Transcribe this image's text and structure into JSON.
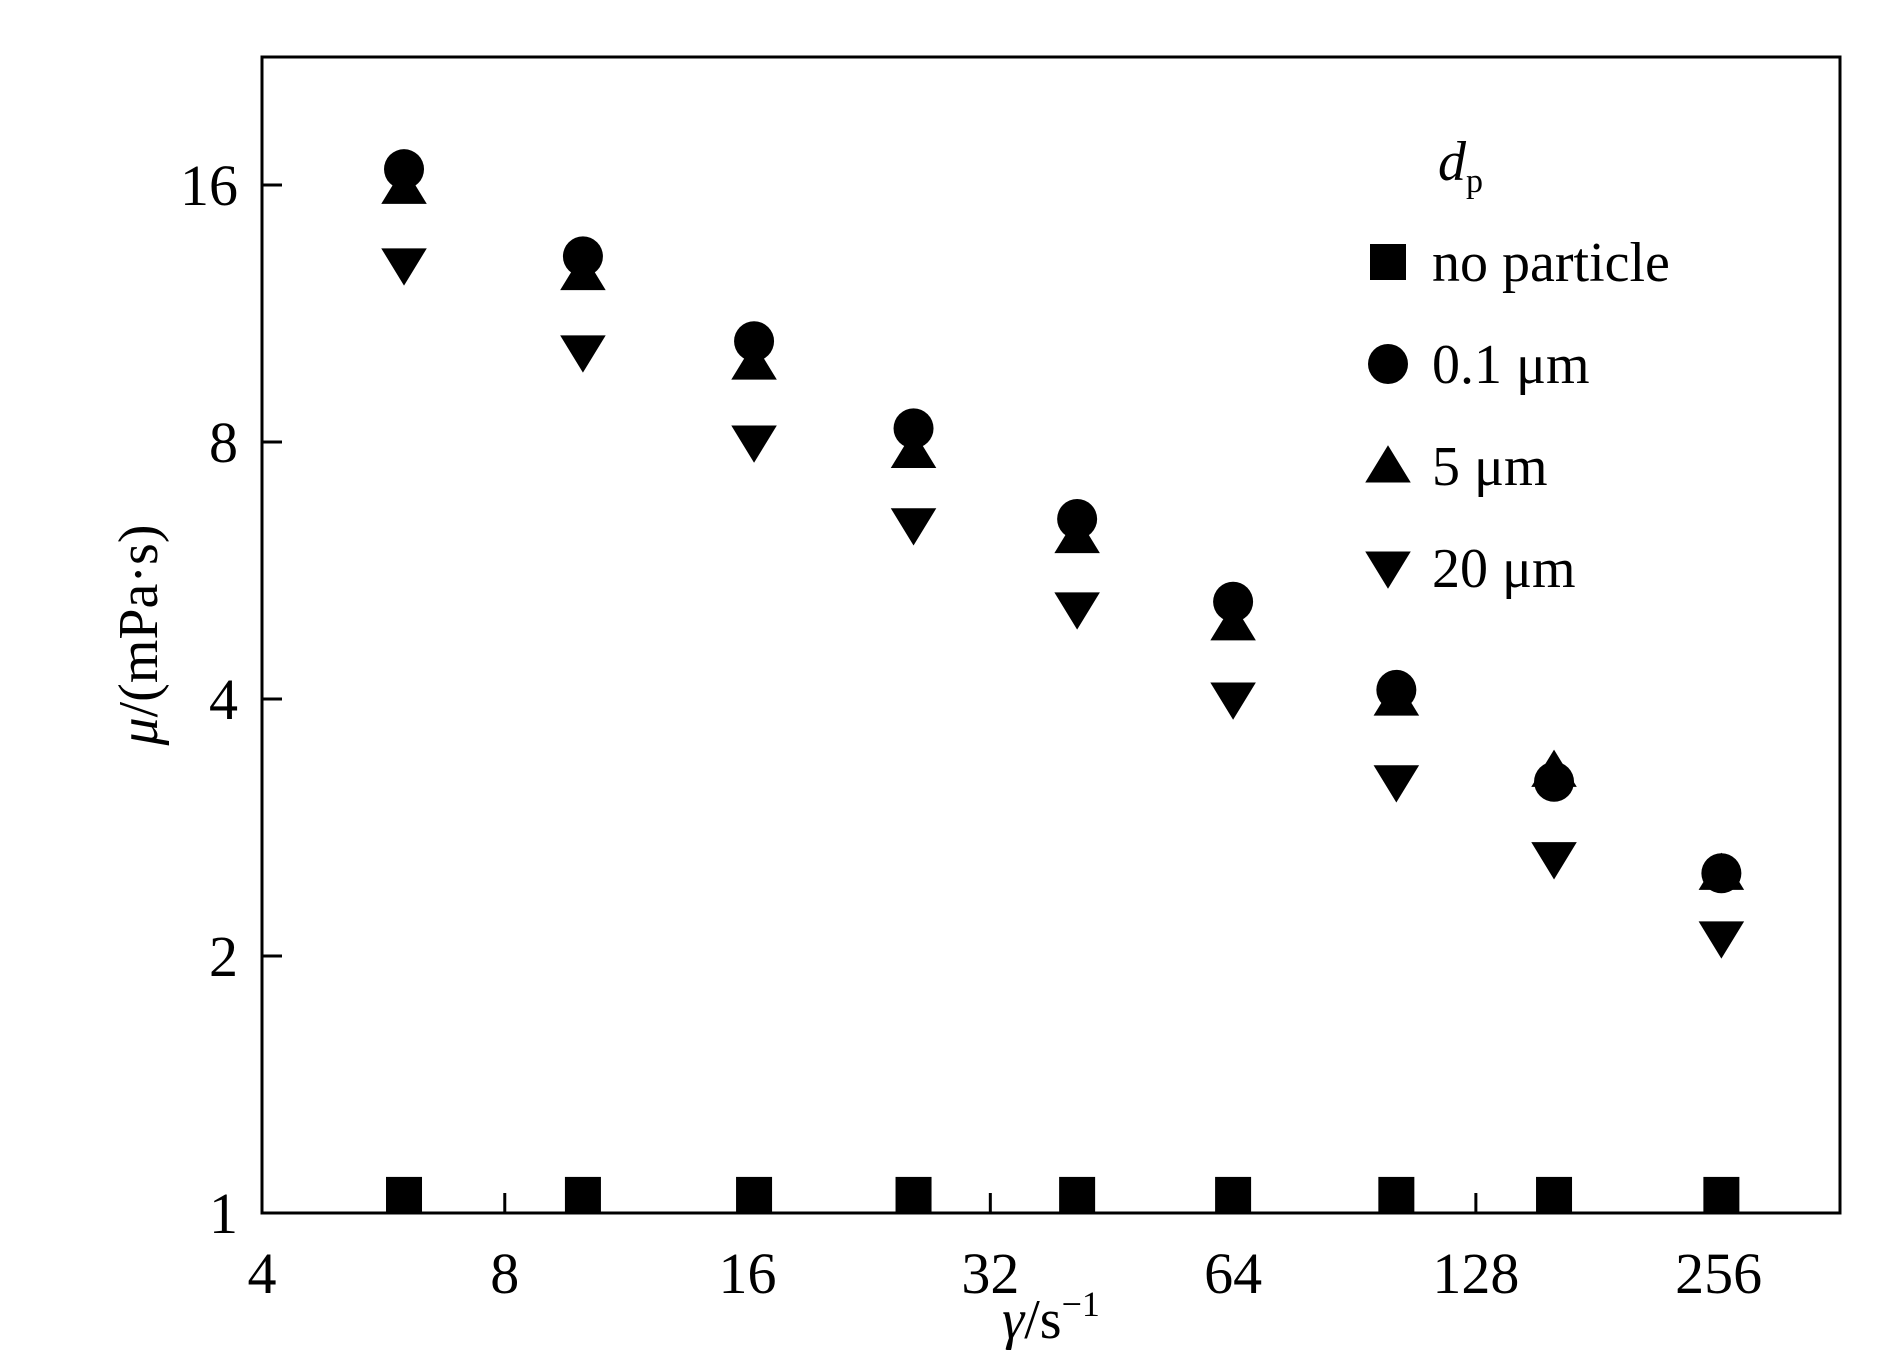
{
  "chart_data": {
    "type": "scatter",
    "xlabel": {
      "symbol": "γ",
      "unit": "/s",
      "exponent": "−1"
    },
    "ylabel": {
      "symbol": "μ",
      "unit": "/(mPa·s)"
    },
    "x_scale": "log2",
    "y_scale": "log2",
    "xlim": [
      4,
      362
    ],
    "ylim": [
      1,
      22.6
    ],
    "x_ticks": [
      4,
      8,
      16,
      32,
      64,
      128,
      256
    ],
    "x_tick_labels": [
      "4",
      "8",
      "16",
      "32",
      "64",
      "128",
      "256"
    ],
    "y_ticks": [
      1,
      2,
      4,
      8,
      16
    ],
    "y_tick_labels": [
      "1",
      "2",
      "4",
      "8",
      "16"
    ],
    "grid": false,
    "legend": {
      "placement": "top-right",
      "title_symbol": "d",
      "title_subscript": "p"
    },
    "series": [
      {
        "name": "no particle",
        "marker": "square",
        "x": [
          6,
          10,
          16.3,
          25.7,
          41,
          64,
          102,
          160,
          258
        ],
        "y": [
          1.05,
          1.05,
          1.05,
          1.05,
          1.05,
          1.05,
          1.05,
          1.05,
          1.05
        ]
      },
      {
        "name": "0.1 μm",
        "marker": "circle",
        "x": [
          6,
          10,
          16.3,
          25.7,
          41,
          64,
          102,
          160,
          258
        ],
        "y": [
          16.7,
          13.2,
          10.5,
          8.3,
          6.5,
          5.2,
          4.1,
          3.2,
          2.5
        ]
      },
      {
        "name": "5 μm",
        "marker": "triangle-up",
        "x": [
          6,
          10,
          16.3,
          25.7,
          41,
          64,
          102,
          160,
          258
        ],
        "y": [
          15.9,
          12.6,
          9.9,
          7.8,
          6.2,
          4.9,
          4.0,
          3.3,
          2.5
        ]
      },
      {
        "name": "20 μm",
        "marker": "triangle-down",
        "x": [
          6,
          10,
          16.3,
          25.7,
          41,
          64,
          102,
          160,
          258
        ],
        "y": [
          12.9,
          10.2,
          8.0,
          6.4,
          5.1,
          4.0,
          3.2,
          2.6,
          2.1
        ]
      }
    ]
  }
}
